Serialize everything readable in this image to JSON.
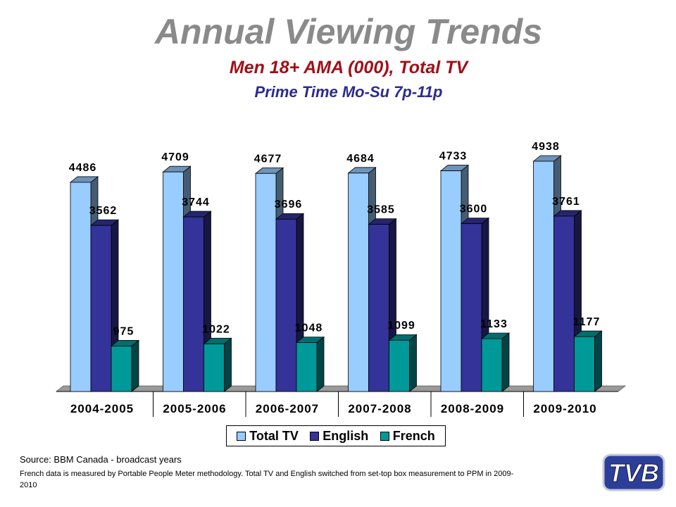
{
  "title": "Annual Viewing Trends",
  "subtitle1": "Men 18+ AMA (000), Total TV",
  "subtitle2": "Prime Time Mo-Su 7p-11p",
  "source": "Source: BBM Canada - broadcast years",
  "note": "French data is measured by Portable People Meter methodology. Total TV and English switched from set-top box measurement  to PPM in 2009-2010",
  "logo_text": "TVB",
  "chart_data": {
    "type": "bar",
    "title": "Annual Viewing Trends",
    "categories": [
      "2004-2005",
      "2005-2006",
      "2006-2007",
      "2007-2008",
      "2008-2009",
      "2009-2010"
    ],
    "series": [
      {
        "name": "Total TV",
        "values": [
          4486,
          4709,
          4677,
          4684,
          4733,
          4938
        ],
        "color": "#99ccff"
      },
      {
        "name": "English",
        "values": [
          3562,
          3744,
          3696,
          3585,
          3600,
          3761
        ],
        "color": "#333399"
      },
      {
        "name": "French",
        "values": [
          975,
          1022,
          1048,
          1099,
          1133,
          1177
        ],
        "color": "#009999"
      }
    ],
    "ylim": [
      0,
      5300
    ],
    "grid": false,
    "legend": "bottom",
    "style": "3d-clustered"
  }
}
